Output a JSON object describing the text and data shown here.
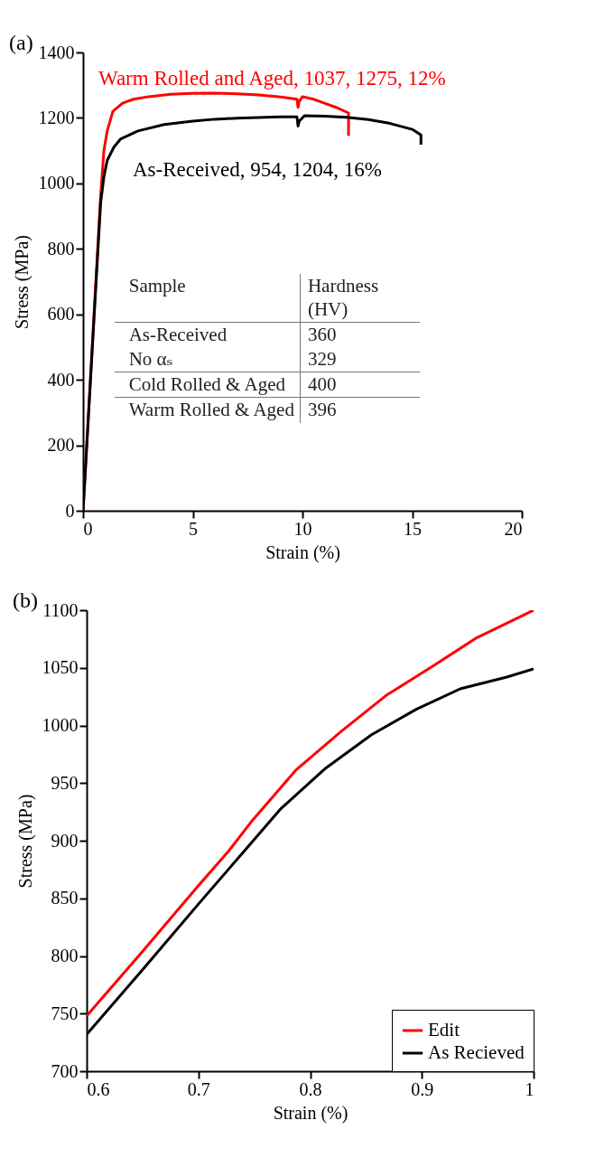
{
  "chart_data": [
    {
      "type": "line",
      "title": "(a)",
      "xlabel": "Strain (%)",
      "ylabel": "Stress (MPa)",
      "xlim": [
        0,
        20
      ],
      "ylim": [
        0,
        1400
      ],
      "xticks": [
        0,
        5,
        10,
        15,
        20
      ],
      "yticks": [
        0,
        200,
        400,
        600,
        800,
        1000,
        1200,
        1400
      ],
      "legend": false,
      "series": [
        {
          "name": "Warm Rolled and Aged, 1037, 1275, 12%",
          "color": "#ff0000",
          "x": [
            0,
            0.5,
            0.8,
            0.95,
            1.1,
            1.36,
            1.8,
            2.3,
            3,
            4,
            5,
            6,
            7,
            8,
            9,
            9.75,
            9.8,
            9.85,
            10,
            10.5,
            11,
            11.5,
            12.1,
            12.1
          ],
          "values": [
            0,
            600,
            960,
            1100,
            1160,
            1220,
            1245,
            1257,
            1265,
            1272,
            1275,
            1276,
            1274,
            1270,
            1264,
            1257,
            1232,
            1250,
            1265,
            1257,
            1245,
            1233,
            1215,
            1145
          ]
        },
        {
          "name": "As-Received, 954, 1204, 16%",
          "color": "#000000",
          "x": [
            0,
            0.5,
            0.8,
            0.95,
            1.1,
            1.4,
            1.7,
            2.5,
            3.7,
            5,
            6,
            7,
            8,
            9,
            9.75,
            9.8,
            9.85,
            10.1,
            11,
            12,
            13,
            14,
            15,
            15.4,
            15.4
          ],
          "values": [
            0,
            590,
            940,
            1020,
            1070,
            1110,
            1135,
            1160,
            1180,
            1190,
            1196,
            1199,
            1201,
            1203,
            1203,
            1175,
            1190,
            1207,
            1205,
            1202,
            1195,
            1183,
            1165,
            1148,
            1118
          ]
        }
      ],
      "annotations": [
        "Sample",
        "Hardness (HV)",
        "As-Received",
        "360",
        "No αₛ",
        "329",
        "Cold Rolled & Aged",
        "400",
        "Warm Rolled & Aged",
        "396"
      ]
    },
    {
      "type": "line",
      "title": "(b)",
      "xlabel": "Strain (%)",
      "ylabel": "Stress (MPa)",
      "xlim": [
        0.6,
        1
      ],
      "ylim": [
        700,
        1100
      ],
      "xticks": [
        0.6,
        0.7,
        0.8,
        0.9,
        1
      ],
      "yticks": [
        700,
        750,
        800,
        850,
        900,
        950,
        1000,
        1050,
        1100
      ],
      "legend": "bottom right",
      "series": [
        {
          "name": "Edit",
          "color": "#ff0000",
          "x": [
            0.6,
            0.65,
            0.7,
            0.727,
            0.747,
            0.787,
            0.828,
            0.868,
            0.909,
            0.949,
            1.0
          ],
          "values": [
            748,
            804,
            861,
            891,
            916,
            961,
            995,
            1026,
            1051,
            1076,
            1100
          ]
        },
        {
          "name": "As Recieved",
          "color": "#000000",
          "x": [
            0.6,
            0.65,
            0.7,
            0.741,
            0.774,
            0.814,
            0.855,
            0.895,
            0.935,
            0.976,
            1.0
          ],
          "values": [
            732,
            788,
            845,
            891,
            928,
            963,
            992,
            1014,
            1032,
            1042,
            1049
          ]
        }
      ]
    }
  ]
}
